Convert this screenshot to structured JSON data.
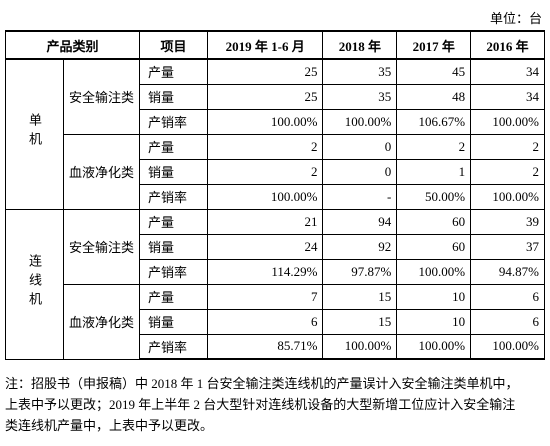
{
  "unit": "单位：台",
  "table": {
    "header": [
      "产品类别",
      "项目",
      "2019 年 1-6 月",
      "2018 年",
      "2017 年",
      "2016 年"
    ],
    "groups": [
      {
        "label": "单机",
        "subgroups": [
          {
            "label": "安全输注类",
            "rows": [
              {
                "item": "产量",
                "values": [
                  "25",
                  "35",
                  "45",
                  "34"
                ]
              },
              {
                "item": "销量",
                "values": [
                  "25",
                  "35",
                  "48",
                  "34"
                ]
              },
              {
                "item": "产销率",
                "values": [
                  "100.00%",
                  "100.00%",
                  "106.67%",
                  "100.00%"
                ]
              }
            ]
          },
          {
            "label": "血液净化类",
            "rows": [
              {
                "item": "产量",
                "values": [
                  "2",
                  "0",
                  "2",
                  "2"
                ]
              },
              {
                "item": "销量",
                "values": [
                  "2",
                  "0",
                  "1",
                  "2"
                ]
              },
              {
                "item": "产销率",
                "values": [
                  "100.00%",
                  "-",
                  "50.00%",
                  "100.00%"
                ]
              }
            ]
          }
        ]
      },
      {
        "label": "连线机",
        "subgroups": [
          {
            "label": "安全输注类",
            "rows": [
              {
                "item": "产量",
                "values": [
                  "21",
                  "94",
                  "60",
                  "39"
                ]
              },
              {
                "item": "销量",
                "values": [
                  "24",
                  "92",
                  "60",
                  "37"
                ]
              },
              {
                "item": "产销率",
                "values": [
                  "114.29%",
                  "97.87%",
                  "100.00%",
                  "94.87%"
                ]
              }
            ]
          },
          {
            "label": "血液净化类",
            "rows": [
              {
                "item": "产量",
                "values": [
                  "7",
                  "15",
                  "10",
                  "6"
                ]
              },
              {
                "item": "销量",
                "values": [
                  "6",
                  "15",
                  "10",
                  "6"
                ]
              },
              {
                "item": "产销率",
                "values": [
                  "85.71%",
                  "100.00%",
                  "100.00%",
                  "100.00%"
                ]
              }
            ]
          }
        ]
      }
    ]
  },
  "note": [
    "注：招股书（申报稿）中 2018 年 1 台安全输注类连线机的产量误计入安全输注类单机中，",
    "上表中予以更改；2019 年上半年 2 台大型针对连线机设备的大型新增工位应计入安全输注",
    "类连线机产量中，上表中予以更改。"
  ]
}
